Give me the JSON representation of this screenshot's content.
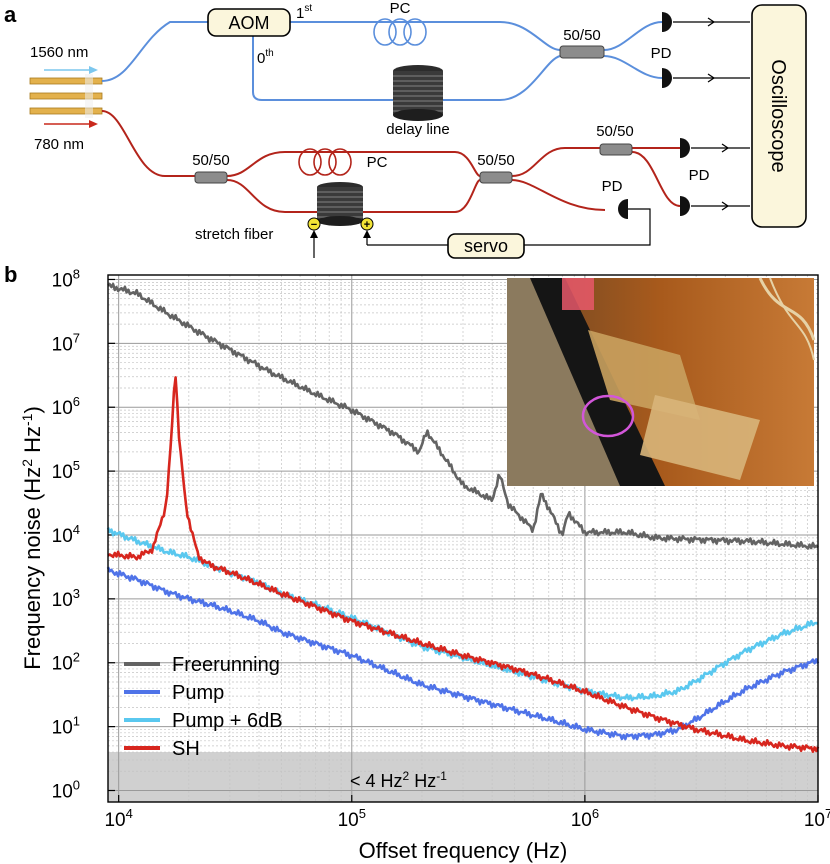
{
  "panel_a": {
    "label": "a",
    "input_1560": "1560 nm",
    "input_780": "780 nm",
    "aom": "AOM",
    "order_first": "1",
    "order_first_sup": "st",
    "order_zero": "0",
    "order_zero_sup": "th",
    "pc_top": "PC",
    "pc_bottom": "PC",
    "coupler_top": "50/50",
    "coupler_left": "50/50",
    "coupler_mid": "50/50",
    "coupler_right": "50/50",
    "delay_line": "delay line",
    "stretch_fiber": "stretch fiber",
    "minus": "−",
    "plus": "+",
    "pd_top": "PD",
    "pd_right": "PD",
    "pd_servo": "PD",
    "servo": "servo",
    "oscilloscope": "Oscilloscope",
    "colors": {
      "pump_fiber": "#5b8fdc",
      "sh_fiber": "#b3241b",
      "box_fill": "#fbf6dc",
      "terminal": "#f2e436"
    }
  },
  "panel_b": {
    "label": "b",
    "inset_photo": "photo-inset",
    "floor_note": {
      "prefix": "< 4 Hz",
      "sq": "2",
      "mid": " Hz",
      "exp": "-1"
    }
  },
  "chart_data": {
    "type": "line",
    "xscale": "log",
    "yscale": "log",
    "xlim": [
      10000,
      10000000
    ],
    "ylim": [
      1,
      100000000
    ],
    "xlabel": "Offset frequency (Hz)",
    "ylabel": {
      "prefix": "Frequency noise (Hz",
      "sq": "2",
      "mid": " Hz",
      "exp": "-1",
      "suffix": ")"
    },
    "x_ticks": [
      {
        "base": "10",
        "exp": "4",
        "value": 10000
      },
      {
        "base": "10",
        "exp": "5",
        "value": 100000
      },
      {
        "base": "10",
        "exp": "6",
        "value": 1000000
      },
      {
        "base": "10",
        "exp": "7",
        "value": 10000000
      }
    ],
    "y_ticks": [
      {
        "base": "10",
        "exp": "0",
        "value": 1
      },
      {
        "base": "10",
        "exp": "1",
        "value": 10
      },
      {
        "base": "10",
        "exp": "2",
        "value": 100
      },
      {
        "base": "10",
        "exp": "3",
        "value": 1000
      },
      {
        "base": "10",
        "exp": "4",
        "value": 10000
      },
      {
        "base": "10",
        "exp": "5",
        "value": 100000
      },
      {
        "base": "10",
        "exp": "6",
        "value": 1000000
      },
      {
        "base": "10",
        "exp": "7",
        "value": 10000000
      },
      {
        "base": "10",
        "exp": "8",
        "value": 100000000
      }
    ],
    "grid": true,
    "legend_position": "bottom-left",
    "shaded_floor": 4,
    "series": [
      {
        "name": "Freerunning",
        "color": "#636363",
        "x": [
          9000,
          12000,
          16000,
          22000,
          30000,
          45000,
          70000,
          100000,
          150000,
          195000,
          210000,
          300000,
          400000,
          430000,
          470000,
          600000,
          650000,
          800000,
          850000,
          1000000,
          1500000,
          2000000,
          3000000,
          5000000,
          10000000
        ],
        "y": [
          80000000,
          60000000,
          30000000,
          15000000,
          8000000,
          3500000,
          1600000,
          900000,
          400000,
          200000,
          420000,
          60000,
          35000,
          90000,
          30000,
          12000,
          45000,
          10000,
          22000,
          11000,
          11000,
          9000,
          8500,
          8000,
          6500
        ]
      },
      {
        "name": "Pump",
        "color": "#4f73e8",
        "x": [
          9000,
          12000,
          16000,
          20000,
          25000,
          30000,
          40000,
          50000,
          70000,
          100000,
          150000,
          200000,
          300000,
          500000,
          700000,
          1000000,
          1500000,
          2000000,
          2500000,
          3000000,
          4000000,
          5000000,
          7000000,
          10000000
        ],
        "y": [
          2800,
          2000,
          1300,
          1000,
          800,
          650,
          450,
          300,
          200,
          130,
          70,
          45,
          30,
          18,
          13,
          9,
          7,
          7.5,
          9,
          13,
          25,
          40,
          70,
          110
        ]
      },
      {
        "name": "Pump + 6dB",
        "color": "#5ac8ef",
        "x": [
          9000,
          12000,
          16000,
          20000,
          25000,
          30000,
          40000,
          50000,
          70000,
          100000,
          150000,
          200000,
          300000,
          500000,
          700000,
          1000000,
          1500000,
          2000000,
          2500000,
          3000000,
          4000000,
          5000000,
          7000000,
          10000000
        ],
        "y": [
          12000,
          8000,
          5500,
          4500,
          3300,
          2600,
          1800,
          1200,
          800,
          500,
          280,
          180,
          120,
          72,
          52,
          36,
          28,
          30,
          36,
          52,
          100,
          160,
          280,
          440
        ]
      },
      {
        "name": "SH",
        "color": "#d7261e",
        "x": [
          9000,
          12000,
          14000,
          16000,
          16800,
          17500,
          18200,
          19500,
          22000,
          25000,
          30000,
          40000,
          50000,
          70000,
          100000,
          150000,
          200000,
          300000,
          500000,
          700000,
          1000000,
          1500000,
          2000000,
          3000000,
          5000000,
          7000000,
          10000000
        ],
        "y": [
          5000,
          4500,
          6000,
          30000,
          300000,
          4000000,
          300000,
          25000,
          4500,
          3300,
          2600,
          1700,
          1200,
          750,
          450,
          280,
          200,
          130,
          80,
          55,
          35,
          20,
          14,
          9,
          6,
          5,
          4.5
        ]
      }
    ]
  }
}
